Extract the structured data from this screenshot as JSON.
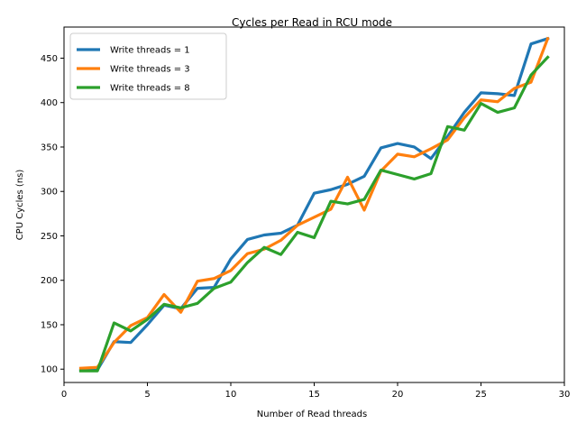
{
  "chart_data": {
    "type": "line",
    "title": "Cycles per Read in RCU mode",
    "xlabel": "Number of Read threads",
    "ylabel": "CPU Cycles (ns)",
    "xlim": [
      0,
      30
    ],
    "ylim": [
      85,
      485
    ],
    "xticks": [
      0,
      5,
      10,
      15,
      20,
      25,
      30
    ],
    "yticks": [
      100,
      150,
      200,
      250,
      300,
      350,
      400,
      450
    ],
    "grid": false,
    "legend_position": "top-left",
    "x": [
      1,
      2,
      3,
      4,
      5,
      6,
      7,
      8,
      9,
      10,
      11,
      12,
      13,
      14,
      15,
      16,
      17,
      18,
      19,
      20,
      21,
      22,
      23,
      24,
      25,
      26,
      27,
      28,
      29
    ],
    "series": [
      {
        "name": "Write threads = 1",
        "color": "#1f77b4",
        "values": [
          99,
          99,
          131,
          130,
          150,
          172,
          168,
          191,
          192,
          224,
          246,
          251,
          253,
          262,
          298,
          302,
          308,
          317,
          349,
          354,
          350,
          337,
          362,
          389,
          411,
          410,
          408,
          466,
          472
        ]
      },
      {
        "name": "Write threads = 3",
        "color": "#ff7f0e",
        "values": [
          101,
          102,
          130,
          149,
          158,
          184,
          164,
          199,
          202,
          211,
          230,
          235,
          245,
          262,
          271,
          280,
          316,
          279,
          323,
          342,
          339,
          348,
          358,
          383,
          403,
          401,
          416,
          423,
          472
        ]
      },
      {
        "name": "Write threads = 8",
        "color": "#2ca02c",
        "values": [
          98,
          98,
          152,
          143,
          156,
          173,
          169,
          174,
          191,
          198,
          220,
          237,
          229,
          254,
          248,
          289,
          286,
          291,
          324,
          319,
          314,
          320,
          373,
          369,
          399,
          389,
          394,
          431,
          451
        ]
      }
    ]
  }
}
